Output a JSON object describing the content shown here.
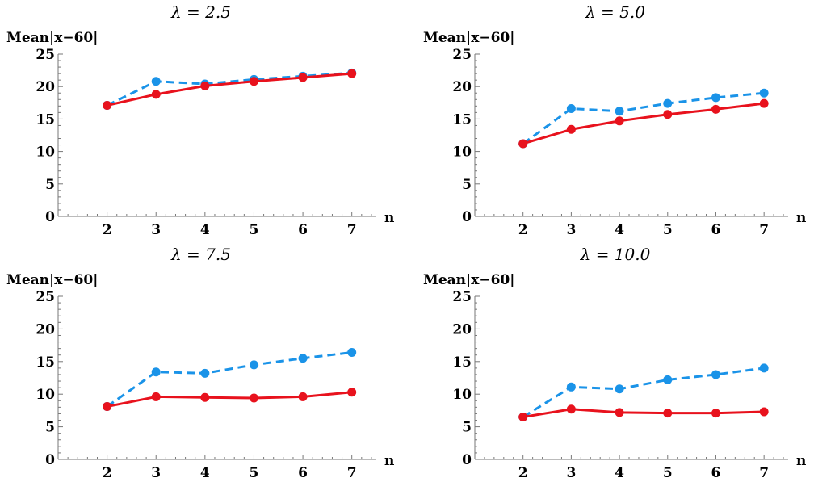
{
  "chart_data": [
    {
      "type": "line",
      "title": "λ = 2.5",
      "xlabel": "n",
      "ylabel": "Mean|x−60|",
      "x": [
        2,
        3,
        4,
        5,
        6,
        7
      ],
      "xlim": [
        1,
        7.5
      ],
      "ylim": [
        0,
        25
      ],
      "yticks": [
        0,
        5,
        10,
        15,
        20,
        25
      ],
      "grid": false,
      "series": [
        {
          "color": "#e8121d",
          "style": "solid",
          "values": [
            17.1,
            18.8,
            20.1,
            20.8,
            21.4,
            22.0
          ]
        },
        {
          "color": "#1a93e8",
          "style": "dashed",
          "values": [
            17.1,
            20.8,
            20.4,
            21.1,
            21.6,
            22.1
          ]
        }
      ]
    },
    {
      "type": "line",
      "title": "λ = 5.0",
      "xlabel": "n",
      "ylabel": "Mean|x−60|",
      "x": [
        2,
        3,
        4,
        5,
        6,
        7
      ],
      "xlim": [
        1,
        7.5
      ],
      "ylim": [
        0,
        25
      ],
      "yticks": [
        0,
        5,
        10,
        15,
        20,
        25
      ],
      "grid": false,
      "series": [
        {
          "color": "#e8121d",
          "style": "solid",
          "values": [
            11.2,
            13.4,
            14.7,
            15.7,
            16.5,
            17.4
          ]
        },
        {
          "color": "#1a93e8",
          "style": "dashed",
          "values": [
            11.2,
            16.6,
            16.2,
            17.4,
            18.3,
            19.0
          ]
        }
      ]
    },
    {
      "type": "line",
      "title": "λ = 7.5",
      "xlabel": "n",
      "ylabel": "Mean|x−60|",
      "x": [
        2,
        3,
        4,
        5,
        6,
        7
      ],
      "xlim": [
        1,
        7.5
      ],
      "ylim": [
        0,
        25
      ],
      "yticks": [
        0,
        5,
        10,
        15,
        20,
        25
      ],
      "grid": false,
      "series": [
        {
          "color": "#e8121d",
          "style": "solid",
          "values": [
            8.1,
            9.6,
            9.5,
            9.4,
            9.6,
            10.3
          ]
        },
        {
          "color": "#1a93e8",
          "style": "dashed",
          "values": [
            8.1,
            13.4,
            13.2,
            14.5,
            15.5,
            16.4
          ]
        }
      ]
    },
    {
      "type": "line",
      "title": "λ = 10.0",
      "xlabel": "n",
      "ylabel": "Mean|x−60|",
      "x": [
        2,
        3,
        4,
        5,
        6,
        7
      ],
      "xlim": [
        1,
        7.5
      ],
      "ylim": [
        0,
        25
      ],
      "yticks": [
        0,
        5,
        10,
        15,
        20,
        25
      ],
      "grid": false,
      "series": [
        {
          "color": "#e8121d",
          "style": "solid",
          "values": [
            6.5,
            7.7,
            7.2,
            7.1,
            7.1,
            7.3
          ]
        },
        {
          "color": "#1a93e8",
          "style": "dashed",
          "values": [
            6.5,
            11.1,
            10.8,
            12.2,
            13.0,
            14.0
          ]
        }
      ]
    }
  ]
}
